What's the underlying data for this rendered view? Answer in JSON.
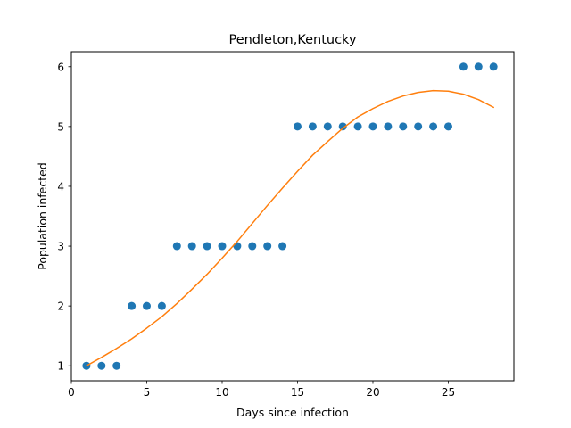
{
  "chart_data": {
    "type": "scatter",
    "title": "Pendleton,Kentucky",
    "xlabel": "Days since infection",
    "ylabel": "Population infected",
    "xlim": [
      0,
      29.35
    ],
    "ylim": [
      0.75,
      6.25
    ],
    "xticks": [
      0,
      5,
      10,
      15,
      20,
      25
    ],
    "yticks": [
      1,
      2,
      3,
      4,
      5,
      6
    ],
    "grid": false,
    "colors": {
      "points": "#1f77b4",
      "fit": "#ff7f0e"
    },
    "series": [
      {
        "kind": "scatter",
        "x": [
          1,
          2,
          3,
          4,
          5,
          6,
          7,
          8,
          9,
          10,
          11,
          12,
          13,
          14,
          15,
          16,
          17,
          18,
          19,
          20,
          21,
          22,
          23,
          24,
          25,
          26,
          27,
          28
        ],
        "y": [
          1,
          1,
          1,
          2,
          2,
          2,
          3,
          3,
          3,
          3,
          3,
          3,
          3,
          3,
          5,
          5,
          5,
          5,
          5,
          5,
          5,
          5,
          5,
          5,
          5,
          6,
          6,
          6
        ]
      },
      {
        "kind": "line",
        "x": [
          1,
          2,
          3,
          4,
          5,
          6,
          7,
          8,
          9,
          10,
          11,
          12,
          13,
          14,
          15,
          16,
          17,
          18,
          19,
          20,
          21,
          22,
          23,
          24,
          25,
          26,
          27,
          28
        ],
        "y": [
          1.0,
          1.14,
          1.29,
          1.45,
          1.63,
          1.82,
          2.04,
          2.28,
          2.53,
          2.8,
          3.08,
          3.38,
          3.68,
          3.97,
          4.25,
          4.52,
          4.75,
          4.97,
          5.16,
          5.3,
          5.42,
          5.51,
          5.57,
          5.6,
          5.59,
          5.54,
          5.45,
          5.32
        ]
      }
    ]
  }
}
